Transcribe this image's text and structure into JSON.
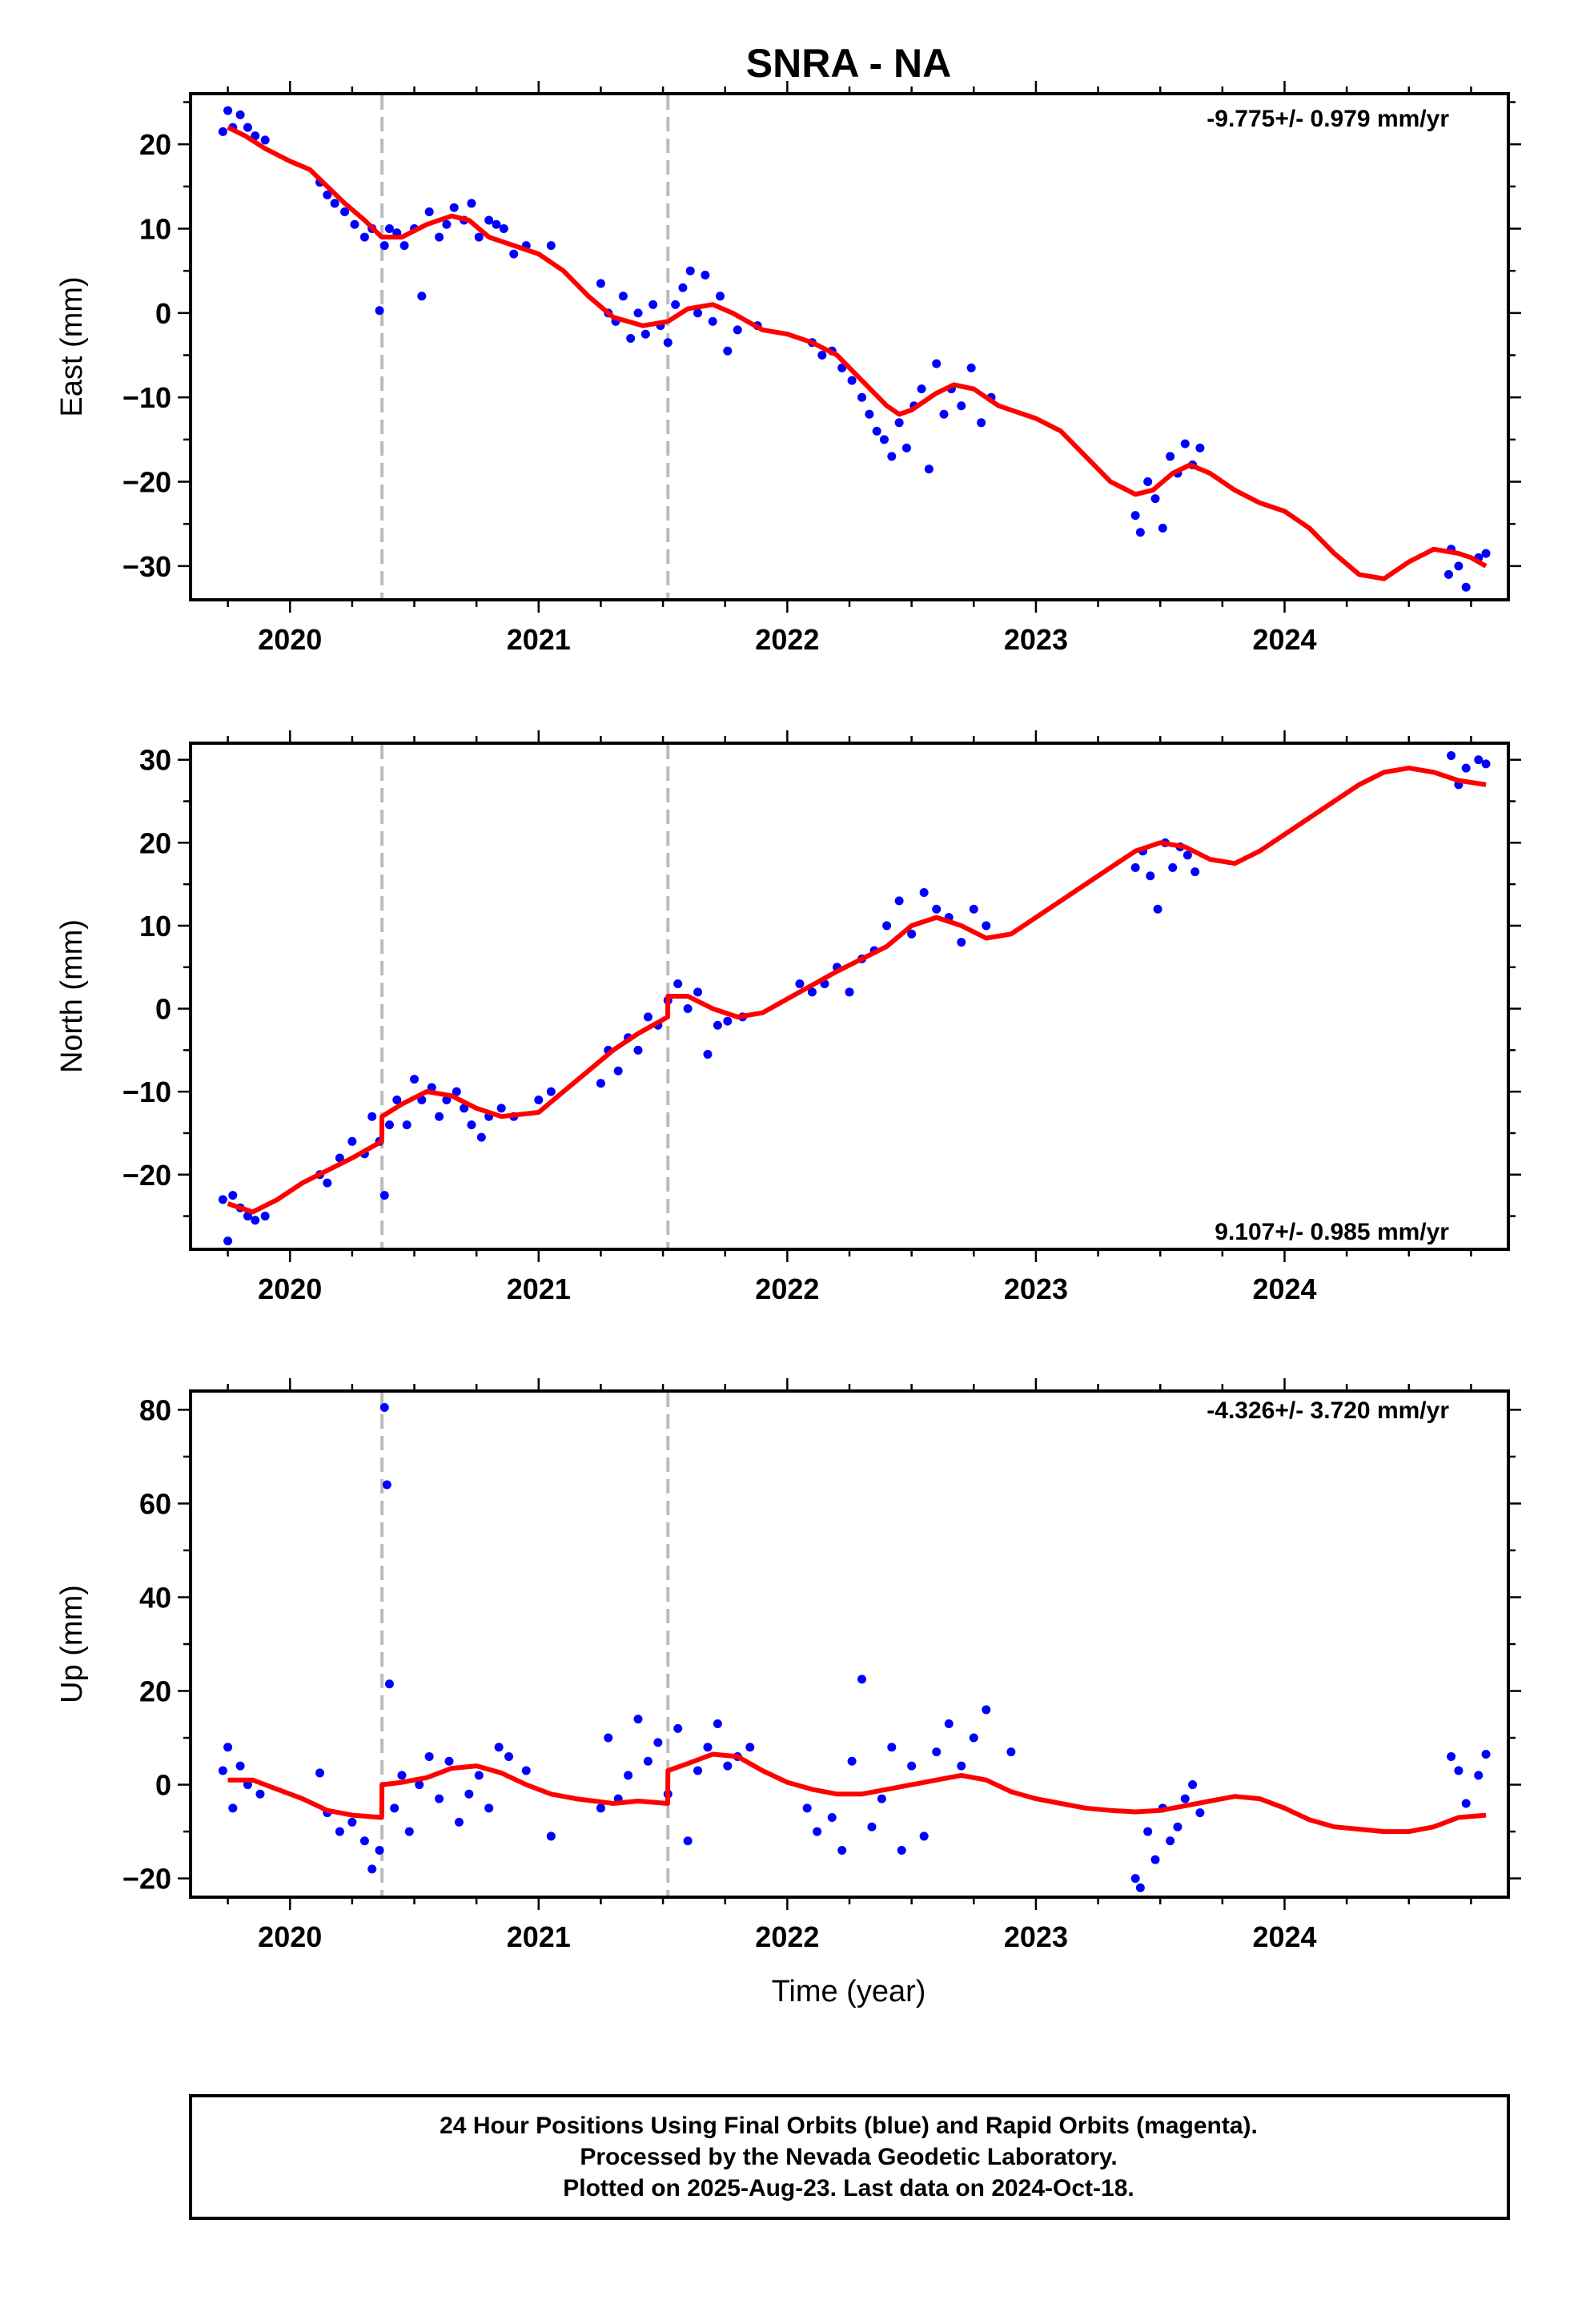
{
  "title": "SNRA - NA",
  "xlabel": "Time (year)",
  "footer": {
    "line1": "24 Hour Positions Using Final Orbits (blue) and Rapid Orbits (magenta).",
    "line2": "Processed by the Nevada Geodetic Laboratory.",
    "line3": "Plotted on 2025-Aug-23. Last data on 2024-Oct-18."
  },
  "colors": {
    "points": "#0000ff",
    "model": "#ff0000",
    "offsets": "#bbbbbb",
    "axes": "#000000"
  },
  "chart_data": [
    {
      "type": "scatter",
      "ylabel": "East (mm)",
      "rate": "-9.775+/- 0.979 mm/yr",
      "xlim": [
        2019.6,
        2024.9
      ],
      "ylim": [
        -34,
        26
      ],
      "xticks": [
        2020,
        2021,
        2022,
        2023,
        2024
      ],
      "yticks": [
        -30,
        -20,
        -10,
        0,
        10,
        20
      ],
      "offsets": [
        2020.37,
        2021.52
      ],
      "series": [
        {
          "x": [
            2019.73,
            2019.75,
            2019.77,
            2019.8,
            2019.83,
            2019.86,
            2019.9,
            2020.12,
            2020.15,
            2020.18,
            2020.22,
            2020.26,
            2020.3,
            2020.33,
            2020.36,
            2020.38,
            2020.4,
            2020.43,
            2020.46,
            2020.5,
            2020.53,
            2020.56,
            2020.6,
            2020.63,
            2020.66,
            2020.7,
            2020.73,
            2020.76,
            2020.8,
            2020.83,
            2020.86,
            2020.9,
            2020.95,
            2021.05,
            2021.25,
            2021.28,
            2021.31,
            2021.34,
            2021.37,
            2021.4,
            2021.43,
            2021.46,
            2021.49,
            2021.52,
            2021.55,
            2021.58,
            2021.61,
            2021.64,
            2021.67,
            2021.7,
            2021.73,
            2021.76,
            2021.8,
            2021.88,
            2022.1,
            2022.14,
            2022.18,
            2022.22,
            2022.26,
            2022.3,
            2022.33,
            2022.36,
            2022.39,
            2022.42,
            2022.45,
            2022.48,
            2022.51,
            2022.54,
            2022.57,
            2022.6,
            2022.63,
            2022.66,
            2022.7,
            2022.74,
            2022.78,
            2022.82,
            2023.4,
            2023.42,
            2023.45,
            2023.48,
            2023.51,
            2023.54,
            2023.57,
            2023.6,
            2023.63,
            2023.66,
            2024.67,
            2024.7,
            2024.73,
            2024.78,
            2024.81,
            2024.66
          ],
          "y": [
            21.5,
            24,
            22,
            23.5,
            22,
            21,
            20.5,
            15.5,
            14,
            13,
            12,
            10.5,
            9,
            10,
            0.3,
            8,
            10,
            9.5,
            8,
            10,
            2,
            12,
            9,
            10.5,
            12.5,
            11,
            13,
            9,
            11,
            10.5,
            10,
            7,
            8,
            8,
            3.5,
            0,
            -1,
            2,
            -3,
            0,
            -2.5,
            1,
            -1.5,
            -3.5,
            1,
            3,
            5,
            0,
            4.5,
            -1,
            2,
            -4.5,
            -2,
            -1.5,
            -3.5,
            -5,
            -4.5,
            -6.5,
            -8,
            -10,
            -12,
            -14,
            -15,
            -17,
            -13,
            -16,
            -11,
            -9,
            -18.5,
            -6,
            -12,
            -9,
            -11,
            -6.5,
            -13,
            -10,
            -24,
            -26,
            -20,
            -22,
            -25.5,
            -17,
            -19,
            -15.5,
            -18,
            -16,
            -28,
            -30,
            -32.5,
            -29,
            -28.5,
            -31
          ]
        }
      ],
      "model": {
        "x": [
          2019.75,
          2019.82,
          2019.9,
          2020,
          2020.08,
          2020.15,
          2020.22,
          2020.3,
          2020.369,
          2020.37,
          2020.45,
          2020.55,
          2020.65,
          2020.72,
          2020.8,
          2020.9,
          2021,
          2021.1,
          2021.2,
          2021.3,
          2021.42,
          2021.519,
          2021.52,
          2021.6,
          2021.7,
          2021.78,
          2021.9,
          2022,
          2022.1,
          2022.2,
          2022.3,
          2022.4,
          2022.45,
          2022.5,
          2022.6,
          2022.67,
          2022.75,
          2022.85,
          2023,
          2023.1,
          2023.2,
          2023.3,
          2023.4,
          2023.47,
          2023.55,
          2023.62,
          2023.7,
          2023.8,
          2023.9,
          2024,
          2024.1,
          2024.2,
          2024.3,
          2024.4,
          2024.45,
          2024.5,
          2024.6,
          2024.7,
          2024.75,
          2024.81
        ],
        "y": [
          22,
          21,
          19.5,
          18,
          17,
          15,
          13,
          11,
          9,
          9,
          9,
          10.5,
          11.5,
          11,
          9,
          8,
          7,
          5,
          2,
          -0.5,
          -1.5,
          -1,
          -1,
          0.5,
          1,
          0,
          -2,
          -2.5,
          -3.5,
          -5,
          -8,
          -11,
          -12,
          -11.5,
          -9.5,
          -8.5,
          -9,
          -11,
          -12.5,
          -14,
          -17,
          -20,
          -21.5,
          -21,
          -19,
          -18,
          -19,
          -21,
          -22.5,
          -23.5,
          -25.5,
          -28.5,
          -31,
          -31.5,
          -30.5,
          -29.5,
          -28,
          -28.5,
          -29,
          -30
        ]
      }
    },
    {
      "type": "scatter",
      "ylabel": "North (mm)",
      "rate": "9.107+/- 0.985 mm/yr",
      "xlim": [
        2019.6,
        2024.9
      ],
      "ylim": [
        -29,
        32
      ],
      "xticks": [
        2020,
        2021,
        2022,
        2023,
        2024
      ],
      "yticks": [
        -20,
        -10,
        0,
        10,
        20,
        30
      ],
      "offsets": [
        2020.37,
        2021.52
      ],
      "series": [
        {
          "x": [
            2019.73,
            2019.75,
            2019.77,
            2019.8,
            2019.83,
            2019.86,
            2019.9,
            2020.12,
            2020.15,
            2020.2,
            2020.25,
            2020.3,
            2020.33,
            2020.36,
            2020.38,
            2020.4,
            2020.43,
            2020.47,
            2020.5,
            2020.53,
            2020.57,
            2020.6,
            2020.63,
            2020.67,
            2020.7,
            2020.73,
            2020.77,
            2020.8,
            2020.85,
            2020.9,
            2021,
            2021.05,
            2021.25,
            2021.28,
            2021.32,
            2021.36,
            2021.4,
            2021.44,
            2021.48,
            2021.52,
            2021.56,
            2021.6,
            2021.64,
            2021.68,
            2021.72,
            2021.76,
            2021.82,
            2022.05,
            2022.1,
            2022.15,
            2022.2,
            2022.25,
            2022.3,
            2022.35,
            2022.4,
            2022.45,
            2022.5,
            2022.55,
            2022.6,
            2022.65,
            2022.7,
            2022.75,
            2022.8,
            2023.4,
            2023.43,
            2023.46,
            2023.49,
            2023.52,
            2023.55,
            2023.58,
            2023.61,
            2023.64,
            2024.67,
            2024.7,
            2024.73,
            2024.78,
            2024.81
          ],
          "y": [
            -23,
            -28,
            -22.5,
            -24,
            -25,
            -25.5,
            -25,
            -20,
            -21,
            -18,
            -16,
            -17.5,
            -13,
            -16,
            -22.5,
            -14,
            -11,
            -14,
            -8.5,
            -11,
            -9.5,
            -13,
            -11,
            -10,
            -12,
            -14,
            -15.5,
            -13,
            -12,
            -13,
            -11,
            -10,
            -9,
            -5,
            -7.5,
            -3.5,
            -5,
            -1,
            -2,
            1,
            3,
            0,
            2,
            -5.5,
            -2,
            -1.5,
            -1,
            3,
            2,
            3,
            5,
            2,
            6,
            7,
            10,
            13,
            9,
            14,
            12,
            11,
            8,
            12,
            10,
            17,
            19,
            16,
            12,
            20,
            17,
            19.5,
            18.5,
            16.5,
            30.5,
            27,
            29,
            30,
            29.5
          ]
        }
      ],
      "model": {
        "x": [
          2019.75,
          2019.85,
          2019.95,
          2020.05,
          2020.15,
          2020.25,
          2020.369,
          2020.37,
          2020.45,
          2020.55,
          2020.65,
          2020.75,
          2020.85,
          2021,
          2021.1,
          2021.2,
          2021.3,
          2021.4,
          2021.519,
          2021.52,
          2021.6,
          2021.7,
          2021.8,
          2021.9,
          2022.05,
          2022.2,
          2022.3,
          2022.4,
          2022.5,
          2022.6,
          2022.7,
          2022.8,
          2022.9,
          2023,
          2023.1,
          2023.2,
          2023.3,
          2023.4,
          2023.5,
          2023.6,
          2023.7,
          2023.8,
          2023.9,
          2024,
          2024.1,
          2024.2,
          2024.3,
          2024.4,
          2024.5,
          2024.6,
          2024.7,
          2024.81
        ],
        "y": [
          -23.5,
          -24.5,
          -23,
          -21,
          -19.5,
          -18,
          -16,
          -13,
          -11.5,
          -10,
          -10.5,
          -12,
          -13,
          -12.5,
          -10,
          -7.5,
          -5,
          -3,
          -1,
          1.5,
          1.5,
          0,
          -1,
          -0.5,
          2,
          4.5,
          6,
          7.5,
          10,
          11,
          10,
          8.5,
          9,
          11,
          13,
          15,
          17,
          19,
          20,
          19.5,
          18,
          17.5,
          19,
          21,
          23,
          25,
          27,
          28.5,
          29,
          28.5,
          27.5,
          27
        ]
      }
    },
    {
      "type": "scatter",
      "ylabel": "Up (mm)",
      "rate": "-4.326+/- 3.720 mm/yr",
      "xlim": [
        2019.6,
        2024.9
      ],
      "ylim": [
        -24,
        84
      ],
      "xticks": [
        2020,
        2021,
        2022,
        2023,
        2024
      ],
      "yticks": [
        -20,
        0,
        20,
        40,
        60,
        80
      ],
      "offsets": [
        2020.37,
        2021.52
      ],
      "series": [
        {
          "x": [
            2019.73,
            2019.75,
            2019.77,
            2019.8,
            2019.83,
            2019.88,
            2020.12,
            2020.15,
            2020.2,
            2020.25,
            2020.3,
            2020.33,
            2020.36,
            2020.38,
            2020.39,
            2020.4,
            2020.42,
            2020.45,
            2020.48,
            2020.52,
            2020.56,
            2020.6,
            2020.64,
            2020.68,
            2020.72,
            2020.76,
            2020.8,
            2020.84,
            2020.88,
            2020.95,
            2021.05,
            2021.25,
            2021.28,
            2021.32,
            2021.36,
            2021.4,
            2021.44,
            2021.48,
            2021.52,
            2021.56,
            2021.6,
            2021.64,
            2021.68,
            2021.72,
            2021.76,
            2021.8,
            2021.85,
            2022.08,
            2022.12,
            2022.18,
            2022.22,
            2022.26,
            2022.3,
            2022.34,
            2022.38,
            2022.42,
            2022.46,
            2022.5,
            2022.55,
            2022.6,
            2022.65,
            2022.7,
            2022.75,
            2022.8,
            2022.9,
            2023.4,
            2023.42,
            2023.45,
            2023.48,
            2023.51,
            2023.54,
            2023.57,
            2023.6,
            2023.63,
            2023.66,
            2024.67,
            2024.7,
            2024.73,
            2024.78,
            2024.81
          ],
          "y": [
            3,
            8,
            -5,
            4,
            0,
            -2,
            2.5,
            -6,
            -10,
            -8,
            -12,
            -18,
            -14,
            80.5,
            64,
            21.5,
            -5,
            2,
            -10,
            0,
            6,
            -3,
            5,
            -8,
            -2,
            2,
            -5,
            8,
            6,
            3,
            -11,
            -5,
            10,
            -3,
            2,
            14,
            5,
            9,
            -2,
            12,
            -12,
            3,
            8,
            13,
            4,
            6,
            8,
            -5,
            -10,
            -7,
            -14,
            5,
            22.5,
            -9,
            -3,
            8,
            -14,
            4,
            -11,
            7,
            13,
            4,
            10,
            16,
            7,
            -20,
            -22,
            -10,
            -16,
            -5,
            -12,
            -9,
            -3,
            0,
            -6,
            6,
            3,
            -4,
            2,
            6.5
          ]
        }
      ],
      "model": {
        "x": [
          2019.75,
          2019.85,
          2019.95,
          2020.05,
          2020.15,
          2020.25,
          2020.369,
          2020.37,
          2020.45,
          2020.55,
          2020.65,
          2020.75,
          2020.85,
          2020.95,
          2021.05,
          2021.15,
          2021.3,
          2021.4,
          2021.519,
          2021.52,
          2021.6,
          2021.7,
          2021.8,
          2021.9,
          2022,
          2022.1,
          2022.2,
          2022.3,
          2022.4,
          2022.5,
          2022.6,
          2022.7,
          2022.8,
          2022.9,
          2023,
          2023.1,
          2023.2,
          2023.3,
          2023.4,
          2023.5,
          2023.6,
          2023.7,
          2023.8,
          2023.9,
          2024,
          2024.1,
          2024.2,
          2024.3,
          2024.4,
          2024.5,
          2024.6,
          2024.7,
          2024.81
        ],
        "y": [
          1,
          1,
          -1,
          -3,
          -5.5,
          -6.5,
          -7,
          0,
          0.5,
          1.5,
          3.5,
          4,
          2.5,
          0,
          -2,
          -3,
          -4,
          -3.5,
          -4,
          3,
          4.5,
          6.5,
          6,
          3,
          0.5,
          -1,
          -2,
          -2,
          -1,
          0,
          1,
          2,
          1,
          -1.5,
          -3,
          -4,
          -5,
          -5.5,
          -5.8,
          -5.5,
          -4.5,
          -3.5,
          -2.5,
          -3,
          -5,
          -7.5,
          -9,
          -9.5,
          -10,
          -10,
          -9,
          -7,
          -6.5
        ]
      }
    }
  ]
}
